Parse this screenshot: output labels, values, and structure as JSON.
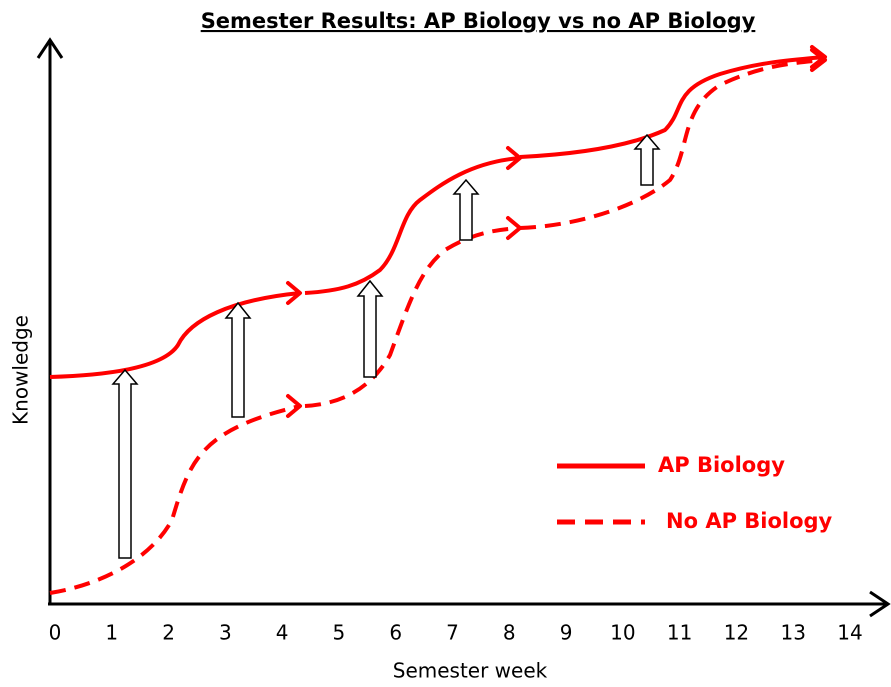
{
  "chart_data": {
    "type": "concept-line",
    "title": "Semester Results: AP Biology vs no AP Biology",
    "x_label": "Semester week",
    "y_label": "Knowledge",
    "xlim": [
      0,
      14
    ],
    "xticks": [
      0,
      1,
      2,
      3,
      4,
      5,
      6,
      7,
      8,
      9,
      10,
      11,
      12,
      13,
      14
    ],
    "series": [
      {
        "name": "AP Biology",
        "color": "#ff0000",
        "dashed": false
      },
      {
        "name": "No AP Biology",
        "color": "#ff0000",
        "dashed": true
      }
    ]
  }
}
